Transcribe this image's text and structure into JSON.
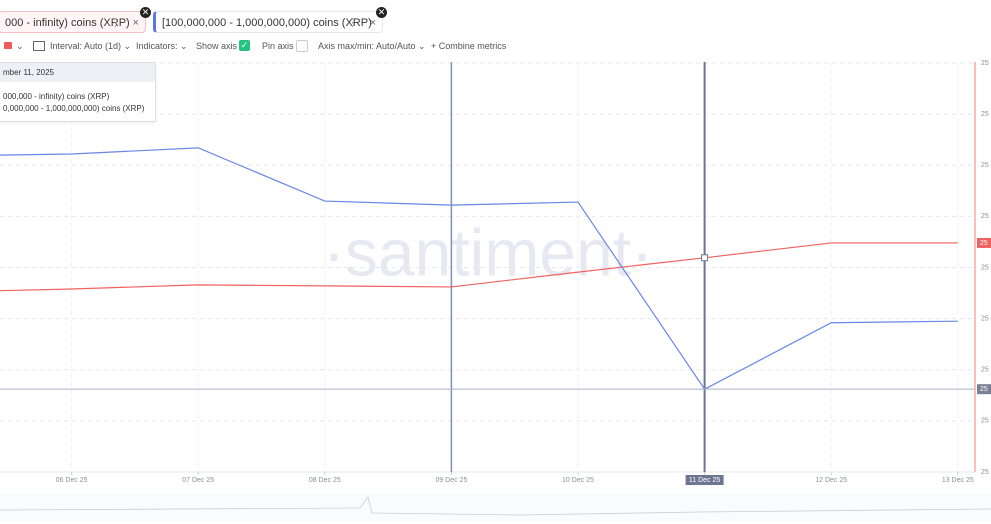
{
  "tabs": [
    {
      "label": "000 - infinity) coins (XRP)"
    },
    {
      "label": "[100,000,000 - 1,000,000,000) coins (XRP)"
    }
  ],
  "toolbar": {
    "interval": "Interval: Auto (1d)",
    "indicators": "Indicators:",
    "show_axis": "Show axis",
    "pin_axis": "Pin axis",
    "axis_minmax": "Axis max/min: Auto/Auto",
    "combine": "Combine metrics"
  },
  "tooltip": {
    "date": "mber 11, 2025"
  },
  "watermark": "·santiment·",
  "chart_data": {
    "type": "line",
    "categories": [
      null,
      "06 Dec 25",
      "07 Dec 25",
      "08 Dec 25",
      "09 Dec 25",
      "10 Dec 25",
      "11 Dec 25",
      "12 Dec 25",
      "13 Dec 25"
    ],
    "series": [
      {
        "name": "000,000 - infinity) coins (XRP)",
        "color": "#f0625f",
        "values": [
          3.52,
          3.58,
          3.66,
          3.64,
          3.62,
          3.91,
          4.19,
          4.48,
          4.48
        ]
      },
      {
        "name": "0,000,000 - 1,000,000,000) coins (XRP)",
        "color": "#6a86e6",
        "values": [
          6.18,
          6.22,
          6.34,
          5.3,
          5.22,
          5.28,
          1.62,
          2.92,
          2.95
        ]
      }
    ],
    "ylim": [
      0,
      8
    ],
    "yticks": [
      {
        "value": 0,
        "label": "25"
      },
      {
        "value": 1,
        "label": "25"
      },
      {
        "value": 2,
        "label": "25"
      },
      {
        "value": 3,
        "label": "25"
      },
      {
        "value": 4,
        "label": "25"
      },
      {
        "value": 5,
        "label": "25"
      },
      {
        "value": 6,
        "label": "25"
      },
      {
        "value": 7,
        "label": "25"
      },
      {
        "value": 8,
        "label": "25"
      }
    ],
    "value_labels": [
      "25",
      "25"
    ],
    "grid": true
  }
}
